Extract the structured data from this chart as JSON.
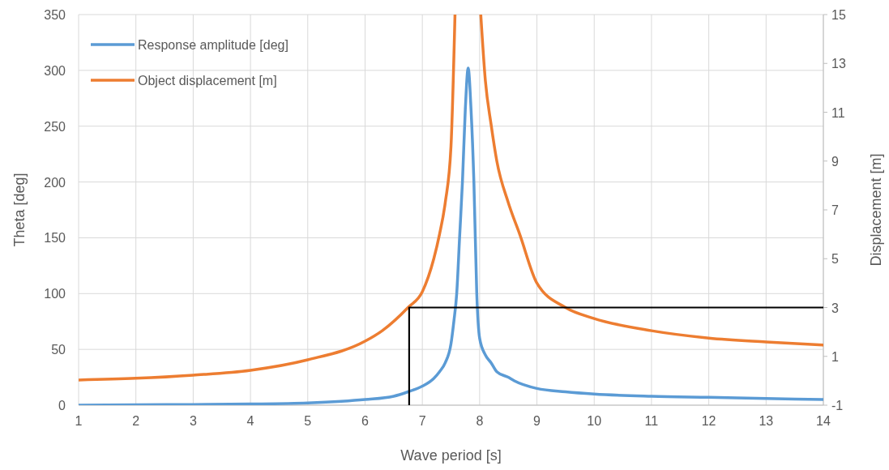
{
  "chart_data": {
    "type": "line",
    "xlabel": "Wave period [s]",
    "ylabel": "Theta [deg]",
    "y2label": "Displacement [m]",
    "xlim": [
      1,
      14
    ],
    "xticks": [
      1,
      2,
      3,
      4,
      5,
      6,
      7,
      8,
      9,
      10,
      11,
      12,
      13,
      14
    ],
    "ylim": [
      0,
      350
    ],
    "yticks": [
      0,
      50,
      100,
      150,
      200,
      250,
      300,
      350
    ],
    "y2lim": [
      -1,
      15
    ],
    "y2ticks": [
      -1,
      1,
      3,
      5,
      7,
      9,
      11,
      13,
      15
    ],
    "grid": true,
    "legend": "top left",
    "line_style": "solid",
    "marker": "none",
    "series": [
      {
        "name": "Response amplitude [deg]",
        "color": "#5b9bd5",
        "x": [
          1,
          2,
          3,
          4,
          5,
          6,
          6.5,
          6.75,
          7,
          7.2,
          7.3,
          7.4,
          7.5,
          7.55,
          7.6,
          7.65,
          7.7,
          7.75,
          7.8,
          7.85,
          7.9,
          7.95,
          8,
          8.1,
          8.2,
          8.3,
          8.5,
          8.6,
          9,
          9.5,
          10,
          11,
          12,
          13,
          14
        ],
        "values": [
          0,
          0.3,
          0.6,
          1,
          2,
          5,
          8,
          12,
          17,
          24,
          30,
          38,
          55,
          75,
          100,
          150,
          200,
          265,
          302,
          265,
          200,
          100,
          60,
          45,
          38,
          30,
          25,
          22,
          15,
          12,
          10,
          8,
          7,
          6,
          5
        ]
      },
      {
        "name": "Object displacement [m]",
        "color": "#ed7d31",
        "axis": "y2",
        "x": [
          1,
          2,
          3,
          4,
          5,
          6,
          6.3,
          6.75,
          7,
          7.2,
          7.3,
          7.4,
          7.5,
          7.57,
          8.02,
          8.1,
          8.2,
          8.3,
          8.5,
          8.7,
          9,
          9.5,
          10,
          11,
          12,
          13,
          14
        ],
        "values": [
          0.03,
          0.1,
          0.23,
          0.43,
          0.86,
          1.62,
          2.05,
          3,
          3.65,
          5,
          6,
          7.3,
          9.6,
          15,
          15,
          12.3,
          10.5,
          9,
          7.3,
          6,
          4,
          3,
          2.55,
          2.05,
          1.75,
          1.59,
          1.46
        ]
      },
      {
        "color": "#000000",
        "axis": "y2",
        "x": [
          6.77,
          6.77,
          14
        ],
        "values": [
          -1,
          3,
          3
        ]
      }
    ]
  }
}
